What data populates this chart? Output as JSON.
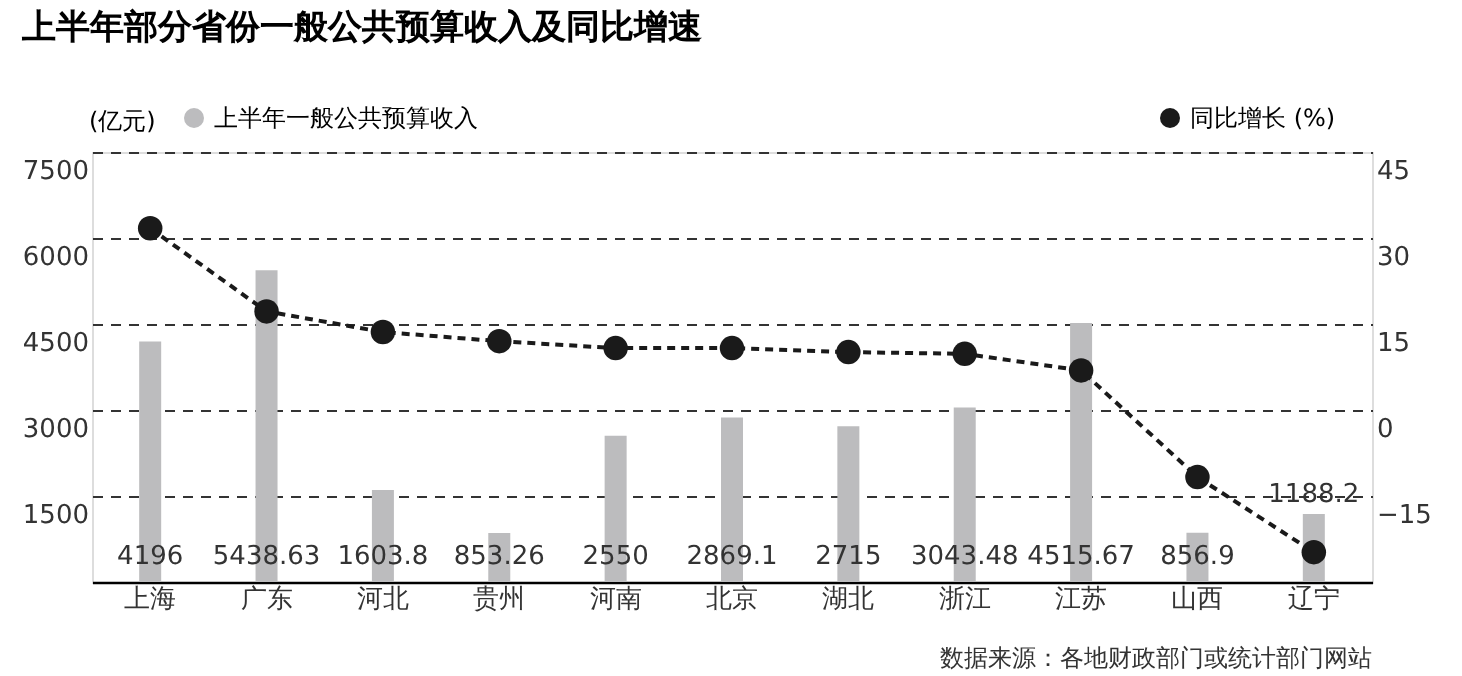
{
  "chart_data": {
    "type": "bar",
    "title": "上半年部分省份一般公共预算收入及同比增速",
    "ylabel": "(亿元)",
    "categories": [
      "上海",
      "广东",
      "河北",
      "贵州",
      "河南",
      "北京",
      "湖北",
      "浙江",
      "江苏",
      "山西",
      "辽宁"
    ],
    "series": [
      {
        "name": "上半年一般公共预算收入",
        "color": "#bcbcbe",
        "values": [
          4196,
          5438.63,
          1603.8,
          853.26,
          2550,
          2869.1,
          2715,
          3043.48,
          4515.67,
          856.9,
          1188.2
        ],
        "value_labels": [
          "4196",
          "5438.63",
          "1603.8",
          "853.26",
          "2550",
          "2869.1",
          "2715",
          "3043.48",
          "4515.67",
          "856.9",
          "1188.2"
        ]
      },
      {
        "name": "同比增长 (%)",
        "type": "line",
        "axis": "y2",
        "color": "#1a1a1a",
        "marker": "circle",
        "line_style": "dashed",
        "values": [
          31.7,
          17.2,
          13.6,
          12.0,
          10.8,
          10.8,
          10.1,
          9.8,
          6.9,
          -11.7,
          -24.8
        ]
      }
    ],
    "ylim": [
      0,
      7500
    ],
    "yticks": [
      1500,
      3000,
      4500,
      6000,
      7500
    ],
    "y2lim": [
      -30,
      45
    ],
    "y2ticks": [
      -15,
      0,
      15,
      30,
      45
    ],
    "grid": "y",
    "legend": "top",
    "annotations": [
      "数据来源：各地财政部门或统计部门网站"
    ]
  }
}
